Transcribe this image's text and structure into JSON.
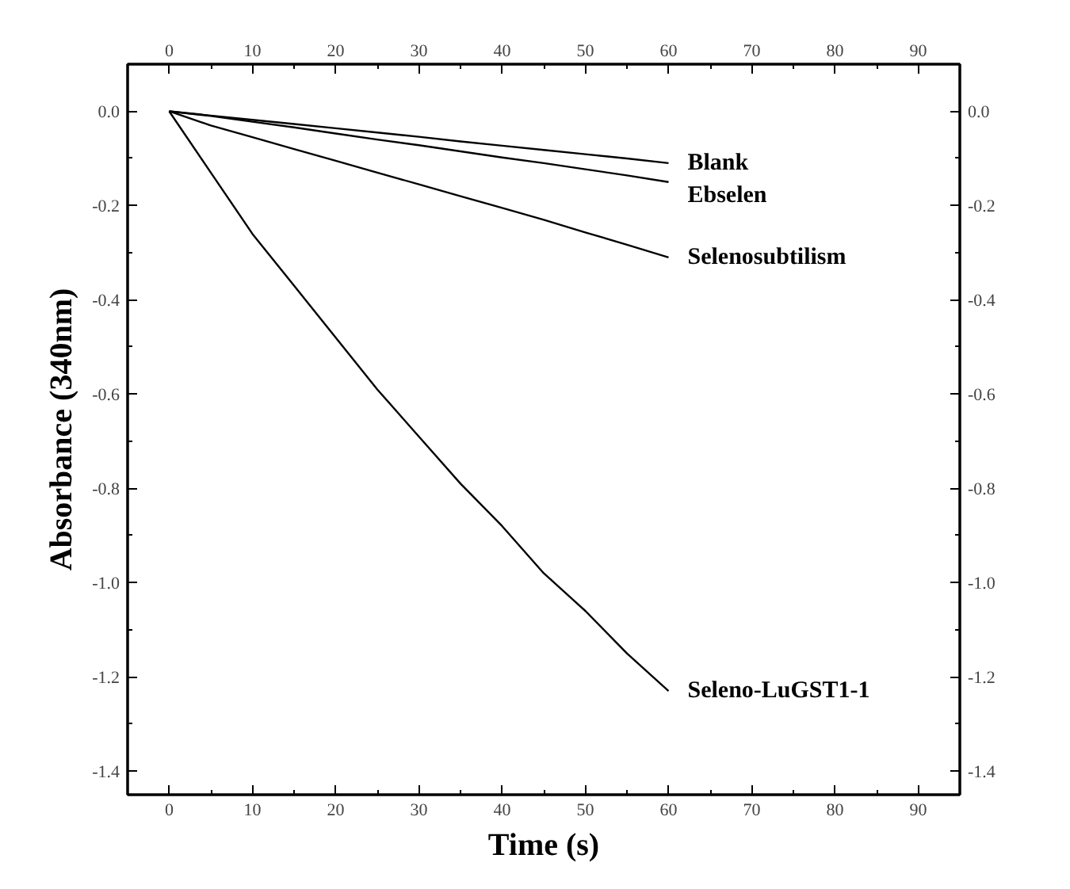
{
  "chart_data": {
    "type": "line",
    "xlabel": "Time (s)",
    "ylabel": "Absorbance (340nm)",
    "xlim": [
      -5,
      95
    ],
    "xticks": [
      0,
      10,
      20,
      30,
      40,
      50,
      60,
      70,
      80,
      90
    ],
    "x2lim": [
      -5,
      95
    ],
    "x2ticks": [
      0,
      10,
      20,
      30,
      40,
      50,
      60,
      70,
      80,
      90
    ],
    "ylim": [
      -1.45,
      0.1
    ],
    "yticks": [
      {
        "value": 0,
        "label": "0.0"
      },
      -0.2,
      -0.4,
      -0.6,
      -0.8,
      {
        "value": -1,
        "label": "-1.0"
      },
      -1.2,
      -1.4
    ],
    "y2lim": [
      -1.45,
      0.1
    ],
    "y2ticks": [
      {
        "value": 0,
        "label": "0.0"
      },
      -0.2,
      -0.4,
      -0.6,
      -0.8,
      {
        "value": -1,
        "label": "-1.0"
      },
      -1.2,
      -1.4
    ],
    "x": [
      0,
      5,
      10,
      15,
      20,
      25,
      30,
      35,
      40,
      45,
      50,
      55,
      60
    ],
    "grid": false,
    "legend": false,
    "marker": "none",
    "line_style": "solid",
    "series": [
      {
        "name": "Blank",
        "color": "#000000",
        "values": [
          0,
          -0.009,
          -0.018,
          -0.027,
          -0.036,
          -0.045,
          -0.054,
          -0.064,
          -0.073,
          -0.082,
          -0.091,
          -0.1,
          -0.11
        ]
      },
      {
        "name": "Ebselen",
        "color": "#000000",
        "values": [
          0,
          -0.01,
          -0.022,
          -0.034,
          -0.047,
          -0.06,
          -0.072,
          -0.085,
          -0.098,
          -0.11,
          -0.123,
          -0.136,
          -0.15
        ]
      },
      {
        "name": "Selenosubtilism",
        "color": "#000000",
        "values": [
          0,
          -0.03,
          -0.055,
          -0.08,
          -0.105,
          -0.13,
          -0.155,
          -0.18,
          -0.205,
          -0.23,
          -0.257,
          -0.283,
          -0.31
        ]
      },
      {
        "name": "Seleno-LuGST1-1",
        "color": "#000000",
        "values": [
          0,
          -0.13,
          -0.26,
          -0.37,
          -0.48,
          -0.59,
          -0.69,
          -0.79,
          -0.88,
          -0.98,
          -1.06,
          -1.15,
          -1.23
        ]
      }
    ]
  }
}
